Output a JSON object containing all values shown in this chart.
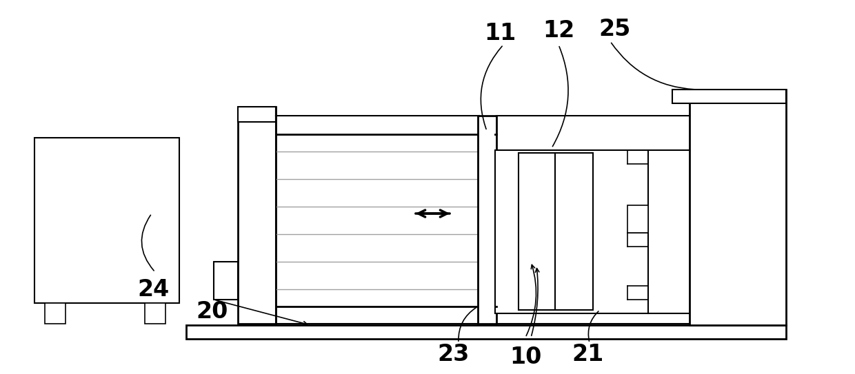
{
  "bg_color": "#ffffff",
  "lc": "#000000",
  "gray": "#a0a0a0",
  "fig_width": 12.4,
  "fig_height": 5.43
}
